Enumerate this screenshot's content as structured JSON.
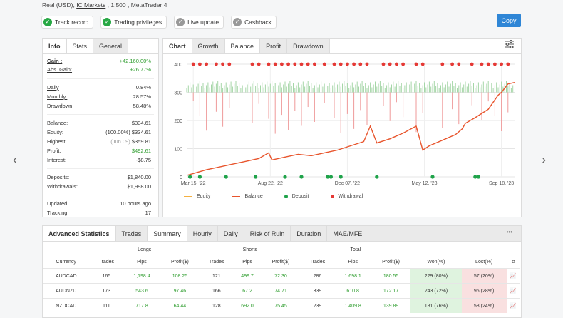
{
  "account": {
    "prefix": "Real (USD), ",
    "broker": "IC Markets",
    "suffix": " , 1:500 , MetaTrader 4"
  },
  "badges": [
    {
      "label": "Track record",
      "state": "on"
    },
    {
      "label": "Trading privileges",
      "state": "on"
    },
    {
      "label": "Live update",
      "state": "off"
    },
    {
      "label": "Cashback",
      "state": "off"
    }
  ],
  "copy_label": "Copy",
  "nav": {
    "prev": "‹",
    "next": "›"
  },
  "stats_panel": {
    "tabs": [
      "Info",
      "Stats",
      "General"
    ],
    "gain_label": "Gain :",
    "gain_value": "+42,160.00%",
    "abs_gain_label": "Abs. Gain:",
    "abs_gain_value": "+26.77%",
    "daily_label": "Daily",
    "daily_value": "0.84%",
    "monthly_label": "Monthly:",
    "monthly_value": "28.57%",
    "drawdown_label": "Drawdown:",
    "drawdown_value": "58.48%",
    "balance_label": "Balance:",
    "balance_value": "$334.61",
    "equity_label": "Equity:",
    "equity_pct": "(100.00%)",
    "equity_value": "$334.61",
    "highest_label": "Highest:",
    "highest_date": "(Jun 09)",
    "highest_value": "$359.81",
    "profit_label": "Profit:",
    "profit_value": "$492.61",
    "interest_label": "Interest:",
    "interest_value": "-$8.75",
    "deposits_label": "Deposits:",
    "deposits_value": "$1,840.00",
    "withdrawals_label": "Withdrawals:",
    "withdrawals_value": "$1,998.00",
    "updated_label": "Updated",
    "updated_value": "10 hours ago",
    "tracking_label": "Tracking",
    "tracking_value": "17"
  },
  "chart_panel": {
    "tabs": [
      "Chart",
      "Growth",
      "Balance",
      "Profit",
      "Drawdown"
    ],
    "active": "Balance"
  },
  "chart_data": {
    "type": "line",
    "title": "",
    "xlabel": "",
    "ylabel": "",
    "x_ticks": [
      "Mar 15, '22",
      "Aug 22, '22",
      "Dec 07, '22",
      "May 12, '23",
      "Sep 18, '23"
    ],
    "y_ticks": [
      0,
      100,
      200,
      300,
      400
    ],
    "ylim": [
      0,
      400
    ],
    "grid": true,
    "legend_position": "bottom",
    "legend": [
      "Equity",
      "Balance",
      "Deposit",
      "Withdrawal"
    ],
    "colors": {
      "equity": "#f5b041",
      "balance": "#e8552d",
      "deposit": "#1fa34a",
      "withdrawal": "#e53935",
      "volume": "#a5d6a7",
      "drawdown": "#ef9a9a"
    },
    "series": [
      {
        "name": "Balance",
        "x": [
          0,
          0.03,
          0.06,
          0.1,
          0.14,
          0.18,
          0.22,
          0.25,
          0.26,
          0.3,
          0.34,
          0.38,
          0.42,
          0.44,
          0.46,
          0.5,
          0.54,
          0.56,
          0.58,
          0.62,
          0.66,
          0.7,
          0.72,
          0.74,
          0.78,
          0.82,
          0.84,
          0.85,
          0.88,
          0.92,
          0.95,
          0.96,
          0.98,
          1.0
        ],
        "y": [
          5,
          15,
          25,
          35,
          45,
          55,
          65,
          85,
          60,
          70,
          80,
          75,
          85,
          90,
          95,
          110,
          125,
          180,
          120,
          135,
          155,
          180,
          95,
          110,
          130,
          150,
          170,
          190,
          210,
          240,
          290,
          300,
          330,
          335
        ]
      }
    ],
    "deposit_x": [
      0.01,
      0.04,
      0.12,
      0.21,
      0.3,
      0.35,
      0.43,
      0.44,
      0.47,
      0.58,
      0.75,
      0.88,
      0.89
    ],
    "withdrawal_x": [
      0.02,
      0.04,
      0.06,
      0.09,
      0.11,
      0.13,
      0.2,
      0.22,
      0.25,
      0.27,
      0.29,
      0.31,
      0.33,
      0.35,
      0.37,
      0.39,
      0.42,
      0.45,
      0.47,
      0.49,
      0.51,
      0.53,
      0.55,
      0.6,
      0.62,
      0.64,
      0.66,
      0.7,
      0.72,
      0.78,
      0.81,
      0.83,
      0.87,
      0.9,
      0.92,
      0.94,
      0.96,
      0.98
    ]
  },
  "advanced": {
    "tabs": [
      "Advanced Statistics",
      "Trades",
      "Summary",
      "Hourly",
      "Daily",
      "Risk of Ruin",
      "Duration",
      "MAE/MFE"
    ],
    "active": "Summary",
    "more": "•••",
    "groups": [
      "Longs",
      "Shorts",
      "Total"
    ],
    "columns": [
      "Currency",
      "Trades",
      "Pips",
      "Profit($)",
      "Trades",
      "Pips",
      "Profit($)",
      "Trades",
      "Pips",
      "Profit($)",
      "Won(%)",
      "Lost(%)"
    ],
    "rows": [
      [
        "AUDCAD",
        "165",
        "1,198.4",
        "108.25",
        "121",
        "499.7",
        "72.30",
        "286",
        "1,698.1",
        "180.55",
        "229 (80%)",
        "57 (20%)"
      ],
      [
        "AUDNZD",
        "173",
        "543.6",
        "97.46",
        "166",
        "67.2",
        "74.71",
        "339",
        "610.8",
        "172.17",
        "243 (72%)",
        "96 (28%)"
      ],
      [
        "NZDCAD",
        "111",
        "717.8",
        "64.44",
        "128",
        "692.0",
        "75.45",
        "239",
        "1,409.8",
        "139.89",
        "181 (76%)",
        "58 (24%)"
      ]
    ]
  }
}
